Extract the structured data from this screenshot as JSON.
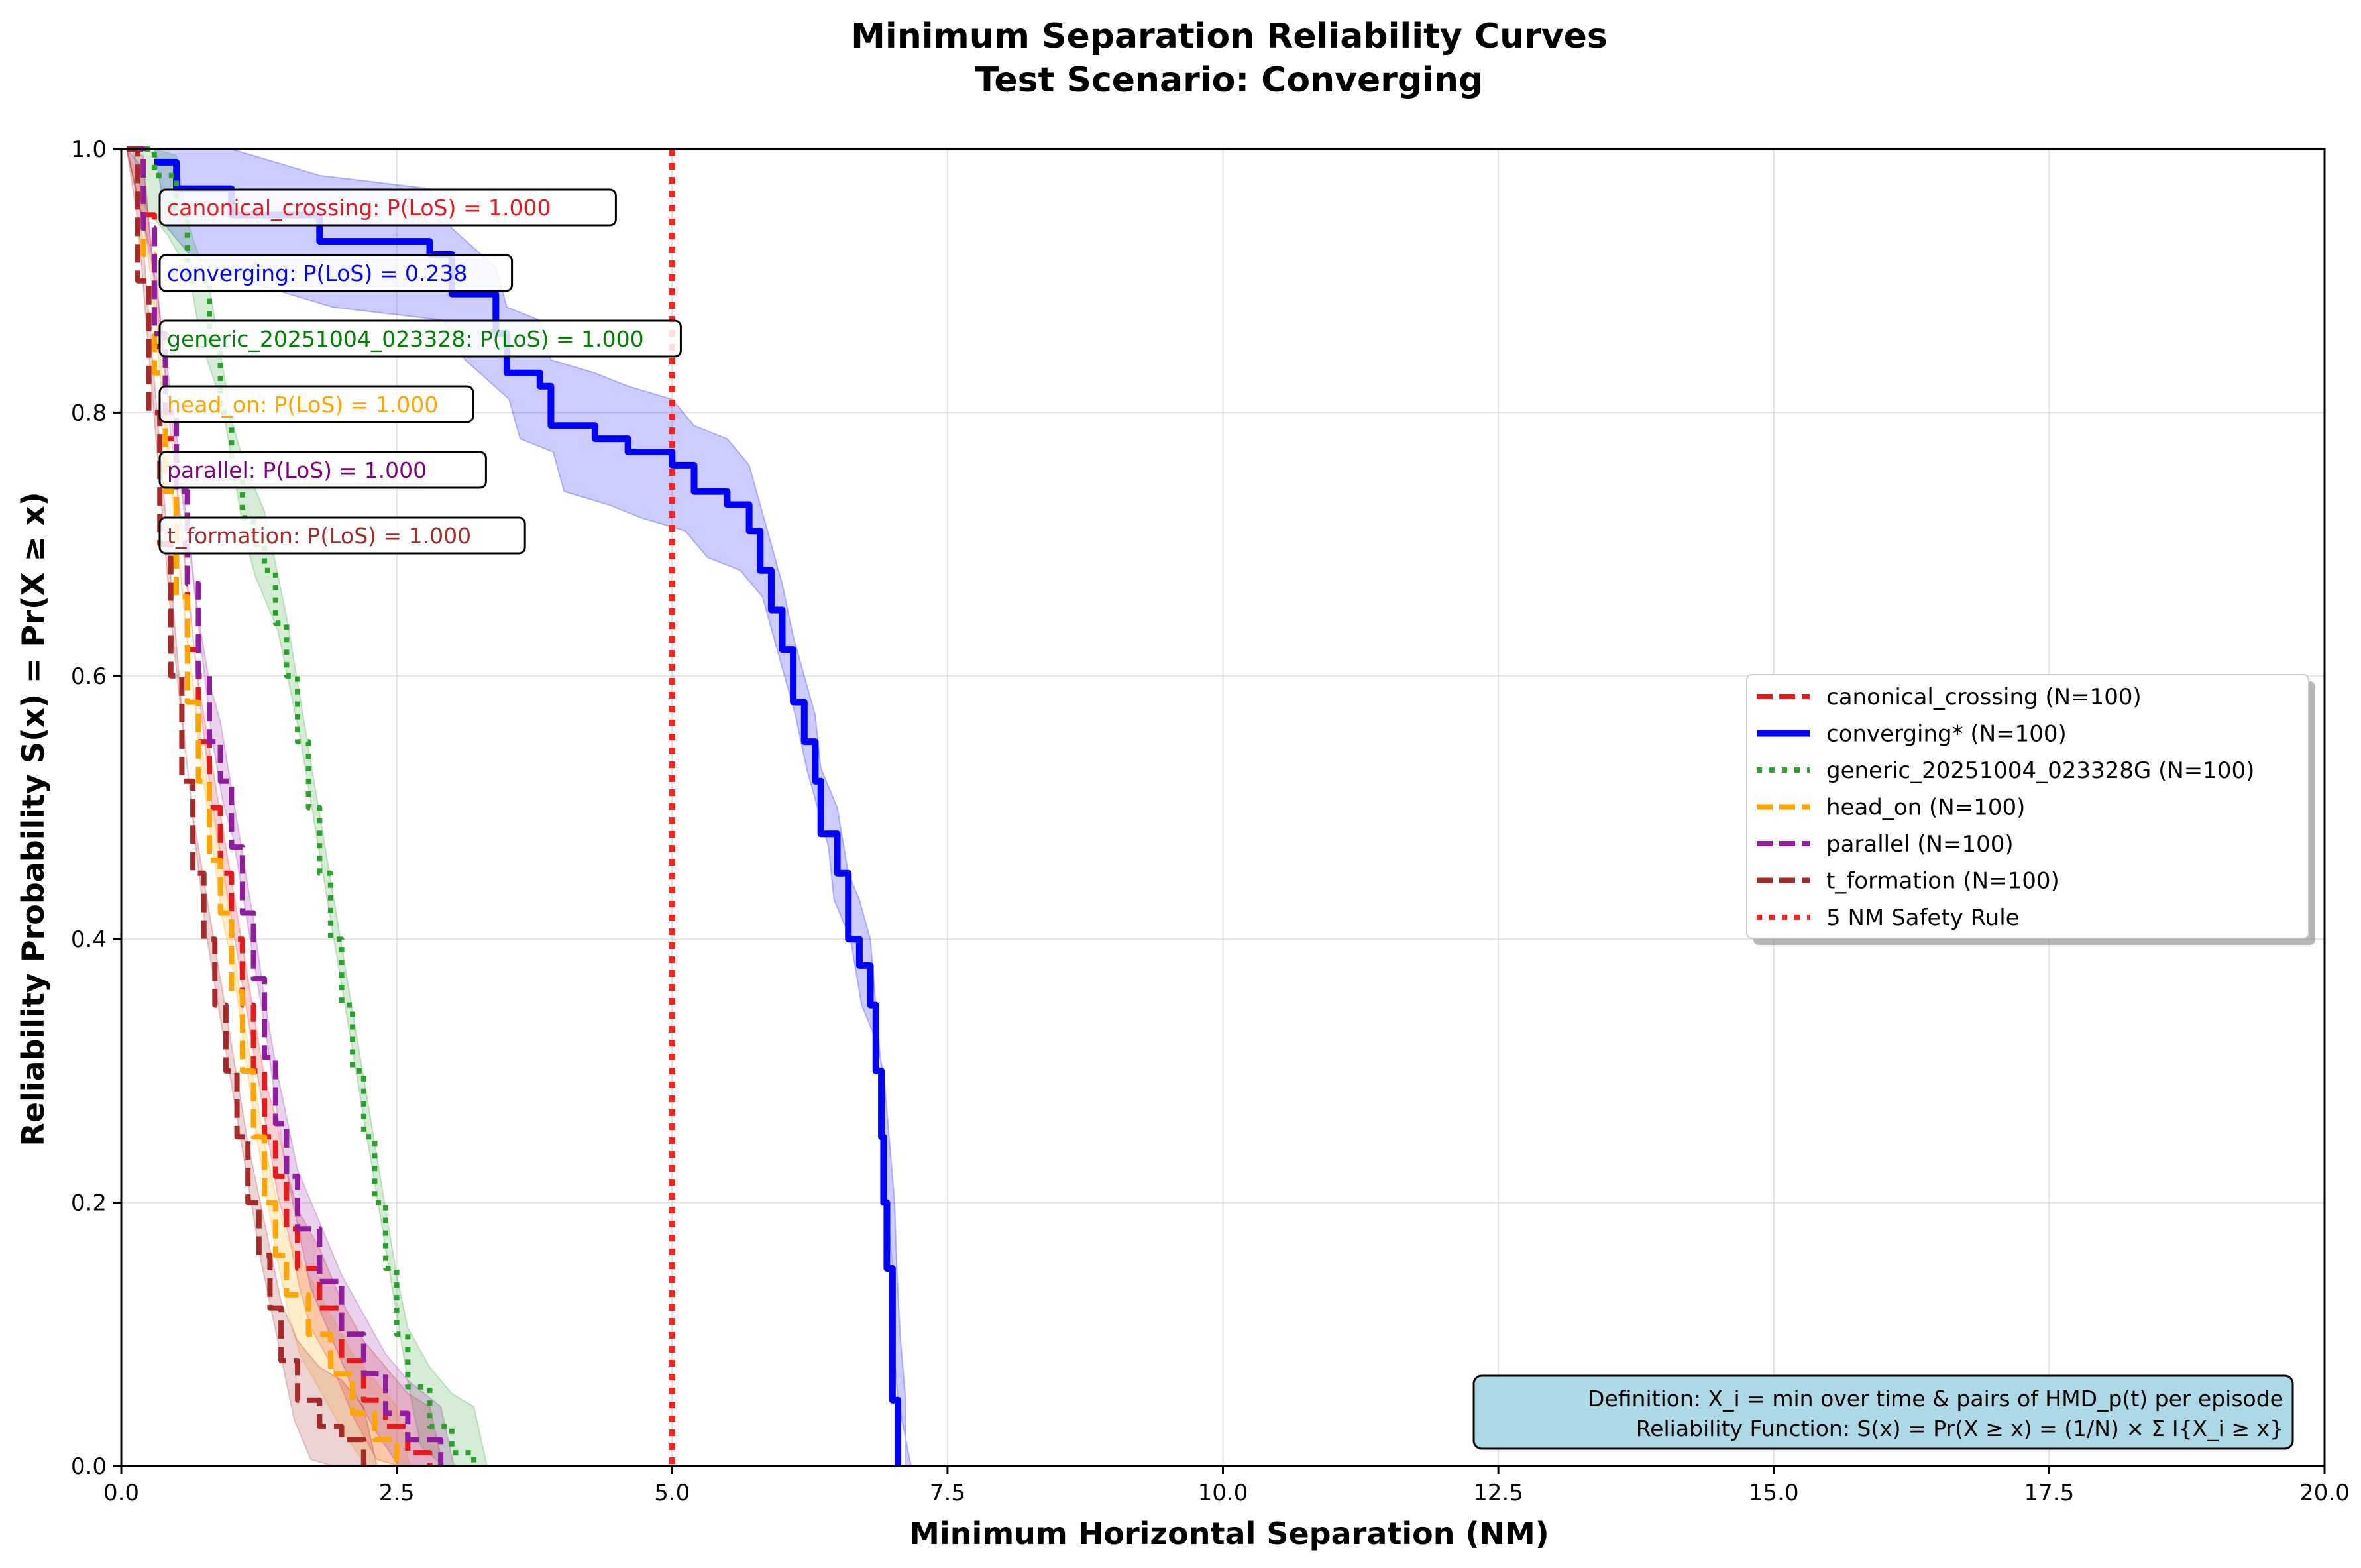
{
  "chart_data": {
    "type": "line",
    "title": "Minimum Separation Reliability Curves",
    "subtitle": "Test Scenario: Converging",
    "xlabel": "Minimum Horizontal Separation (NM)",
    "ylabel": "Reliability Probability S(x) = Pr(X ≥ x)",
    "xlim": [
      0,
      20
    ],
    "ylim": [
      0,
      1
    ],
    "x_ticks": [
      0,
      2.5,
      5,
      7.5,
      10,
      12.5,
      15,
      17.5,
      20
    ],
    "x_tick_labels": [
      "0.0",
      "2.5",
      "5.0",
      "7.5",
      "10.0",
      "12.5",
      "15.0",
      "17.5",
      "20.0"
    ],
    "y_ticks": [
      0,
      0.2,
      0.4,
      0.6,
      0.8,
      1.0
    ],
    "y_tick_labels": [
      "0.0",
      "0.2",
      "0.4",
      "0.6",
      "0.8",
      "1.0"
    ],
    "grid": true,
    "legend_position": "center-right",
    "series": [
      {
        "name": "canonical_crossing (N=100)",
        "color": "#e41a1c",
        "style": "dashed",
        "points": [
          [
            0.05,
            1.0
          ],
          [
            0.2,
            0.95
          ],
          [
            0.3,
            0.85
          ],
          [
            0.4,
            0.78
          ],
          [
            0.5,
            0.7
          ],
          [
            0.6,
            0.62
          ],
          [
            0.7,
            0.55
          ],
          [
            0.8,
            0.5
          ],
          [
            0.9,
            0.45
          ],
          [
            1.0,
            0.4
          ],
          [
            1.1,
            0.35
          ],
          [
            1.2,
            0.3
          ],
          [
            1.3,
            0.25
          ],
          [
            1.4,
            0.22
          ],
          [
            1.5,
            0.18
          ],
          [
            1.6,
            0.15
          ],
          [
            1.8,
            0.12
          ],
          [
            2.0,
            0.08
          ],
          [
            2.2,
            0.05
          ],
          [
            2.4,
            0.03
          ],
          [
            2.6,
            0.01
          ],
          [
            2.8,
            0.0
          ]
        ]
      },
      {
        "name": "converging* (N=100)",
        "color": "#0000ff",
        "style": "solid",
        "points": [
          [
            0.3,
            0.99
          ],
          [
            0.5,
            0.97
          ],
          [
            1.0,
            0.95
          ],
          [
            1.8,
            0.93
          ],
          [
            2.8,
            0.92
          ],
          [
            3.0,
            0.89
          ],
          [
            3.4,
            0.86
          ],
          [
            3.5,
            0.83
          ],
          [
            3.8,
            0.82
          ],
          [
            3.9,
            0.79
          ],
          [
            4.3,
            0.78
          ],
          [
            4.6,
            0.77
          ],
          [
            5.0,
            0.76
          ],
          [
            5.2,
            0.74
          ],
          [
            5.5,
            0.73
          ],
          [
            5.7,
            0.71
          ],
          [
            5.8,
            0.68
          ],
          [
            5.9,
            0.65
          ],
          [
            6.0,
            0.62
          ],
          [
            6.1,
            0.58
          ],
          [
            6.2,
            0.55
          ],
          [
            6.3,
            0.52
          ],
          [
            6.35,
            0.48
          ],
          [
            6.5,
            0.45
          ],
          [
            6.6,
            0.4
          ],
          [
            6.7,
            0.38
          ],
          [
            6.8,
            0.35
          ],
          [
            6.85,
            0.3
          ],
          [
            6.9,
            0.25
          ],
          [
            6.92,
            0.2
          ],
          [
            6.95,
            0.15
          ],
          [
            7.0,
            0.1
          ],
          [
            7.0,
            0.05
          ],
          [
            7.05,
            0.0
          ]
        ]
      },
      {
        "name": "generic_20251004_023328G (N=100)",
        "color": "#2ca02c",
        "style": "dotted",
        "points": [
          [
            0.1,
            1.0
          ],
          [
            0.3,
            0.98
          ],
          [
            0.5,
            0.95
          ],
          [
            0.6,
            0.9
          ],
          [
            0.8,
            0.85
          ],
          [
            0.9,
            0.8
          ],
          [
            1.0,
            0.75
          ],
          [
            1.1,
            0.72
          ],
          [
            1.2,
            0.7
          ],
          [
            1.3,
            0.68
          ],
          [
            1.4,
            0.64
          ],
          [
            1.5,
            0.6
          ],
          [
            1.6,
            0.55
          ],
          [
            1.7,
            0.5
          ],
          [
            1.8,
            0.45
          ],
          [
            1.9,
            0.4
          ],
          [
            2.0,
            0.35
          ],
          [
            2.1,
            0.3
          ],
          [
            2.2,
            0.25
          ],
          [
            2.3,
            0.2
          ],
          [
            2.4,
            0.15
          ],
          [
            2.5,
            0.1
          ],
          [
            2.6,
            0.06
          ],
          [
            2.8,
            0.03
          ],
          [
            3.0,
            0.01
          ],
          [
            3.2,
            0.0
          ]
        ]
      },
      {
        "name": "head_on (N=100)",
        "color": "#ffa500",
        "style": "dashed",
        "points": [
          [
            0.05,
            1.0
          ],
          [
            0.2,
            0.92
          ],
          [
            0.3,
            0.83
          ],
          [
            0.4,
            0.74
          ],
          [
            0.5,
            0.66
          ],
          [
            0.6,
            0.58
          ],
          [
            0.7,
            0.52
          ],
          [
            0.8,
            0.46
          ],
          [
            0.9,
            0.42
          ],
          [
            1.0,
            0.36
          ],
          [
            1.1,
            0.3
          ],
          [
            1.2,
            0.25
          ],
          [
            1.3,
            0.2
          ],
          [
            1.4,
            0.16
          ],
          [
            1.5,
            0.13
          ],
          [
            1.7,
            0.1
          ],
          [
            1.9,
            0.07
          ],
          [
            2.1,
            0.04
          ],
          [
            2.3,
            0.02
          ],
          [
            2.5,
            0.0
          ]
        ]
      },
      {
        "name": "parallel (N=100)",
        "color": "#8e1e9e",
        "style": "dashed",
        "points": [
          [
            0.05,
            1.0
          ],
          [
            0.2,
            0.94
          ],
          [
            0.3,
            0.86
          ],
          [
            0.4,
            0.8
          ],
          [
            0.5,
            0.74
          ],
          [
            0.6,
            0.67
          ],
          [
            0.7,
            0.6
          ],
          [
            0.8,
            0.55
          ],
          [
            0.9,
            0.52
          ],
          [
            1.0,
            0.47
          ],
          [
            1.1,
            0.42
          ],
          [
            1.2,
            0.37
          ],
          [
            1.3,
            0.31
          ],
          [
            1.4,
            0.26
          ],
          [
            1.5,
            0.22
          ],
          [
            1.6,
            0.18
          ],
          [
            1.8,
            0.14
          ],
          [
            2.0,
            0.1
          ],
          [
            2.2,
            0.07
          ],
          [
            2.4,
            0.04
          ],
          [
            2.6,
            0.02
          ],
          [
            2.9,
            0.0
          ]
        ]
      },
      {
        "name": "t_formation (N=100)",
        "color": "#a52a2a",
        "style": "dashed",
        "points": [
          [
            0.05,
            1.0
          ],
          [
            0.15,
            0.9
          ],
          [
            0.25,
            0.8
          ],
          [
            0.35,
            0.7
          ],
          [
            0.45,
            0.6
          ],
          [
            0.55,
            0.52
          ],
          [
            0.65,
            0.45
          ],
          [
            0.75,
            0.4
          ],
          [
            0.85,
            0.35
          ],
          [
            0.95,
            0.3
          ],
          [
            1.05,
            0.25
          ],
          [
            1.15,
            0.2
          ],
          [
            1.25,
            0.16
          ],
          [
            1.35,
            0.12
          ],
          [
            1.45,
            0.08
          ],
          [
            1.6,
            0.05
          ],
          [
            1.8,
            0.03
          ],
          [
            2.0,
            0.02
          ],
          [
            2.2,
            0.0
          ]
        ]
      }
    ],
    "threshold_line": {
      "name": "5 NM Safety Rule",
      "x": 5.0,
      "color": "#ff2020",
      "style": "dotted"
    },
    "annotations": [
      {
        "text": "canonical_crossing: P(LoS) = 1.000",
        "color": "#e41a1c"
      },
      {
        "text": "converging: P(LoS) = 0.238",
        "color": "#0000ff"
      },
      {
        "text": "generic_20251004_023328: P(LoS) = 1.000",
        "color": "#008000"
      },
      {
        "text": "head_on: P(LoS) = 1.000",
        "color": "#ffa500"
      },
      {
        "text": "parallel: P(LoS) = 1.000",
        "color": "#800080"
      },
      {
        "text": "t_formation: P(LoS) = 1.000",
        "color": "#a52a2a"
      }
    ],
    "definition_box": {
      "line1": "Definition: X_i = min over time & pairs of HMD_p(t) per episode",
      "line2": "Reliability Function: S(x) = Pr(X ≥ x) = (1/N) × Σ I{X_i ≥ x}",
      "background": "#add8e6"
    }
  }
}
